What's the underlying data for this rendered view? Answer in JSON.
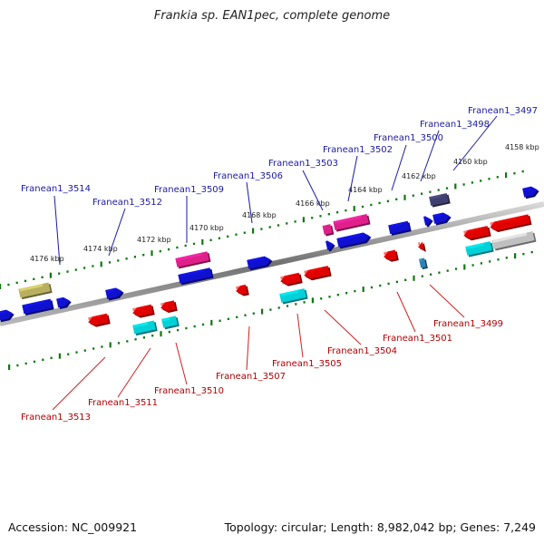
{
  "title": "Frankia sp. EAN1pec, complete genome",
  "footer": {
    "accession": "Accession: NC_009921",
    "summary": "Topology: circular; Length: 8,982,042 bp; Genes: 7,249"
  },
  "scale_labels": [
    "4158 kbp",
    "4160 kbp",
    "4162 kbp",
    "4164 kbp",
    "4166 kbp",
    "4168 kbp",
    "4170 kbp",
    "4172 kbp",
    "4174 kbp",
    "4176 kbp"
  ],
  "top_genes": [
    "Franean1_3497",
    "Franean1_3498",
    "Franean1_3500",
    "Franean1_3502",
    "Franean1_3503",
    "Franean1_3506",
    "Franean1_3509",
    "Franean1_3512",
    "Franean1_3514"
  ],
  "bottom_genes": [
    "Franean1_3499",
    "Franean1_3501",
    "Franean1_3504",
    "Franean1_3505",
    "Franean1_3507",
    "Franean1_3510",
    "Franean1_3511",
    "Franean1_3513"
  ],
  "colors": {
    "forward": "#1010d0",
    "reverse": "#e00000",
    "magenta": "#e0208a",
    "cyan": "#00d0d8",
    "olive": "#b8b060",
    "navy": "#404070",
    "gray": "#c0c0c0",
    "steel": "#3080b0",
    "tick": "#117711",
    "label_top": "#1a1aa0",
    "label_bottom": "#b00000",
    "leader": "#1a1aa0",
    "leader_bottom": "#d02020"
  }
}
